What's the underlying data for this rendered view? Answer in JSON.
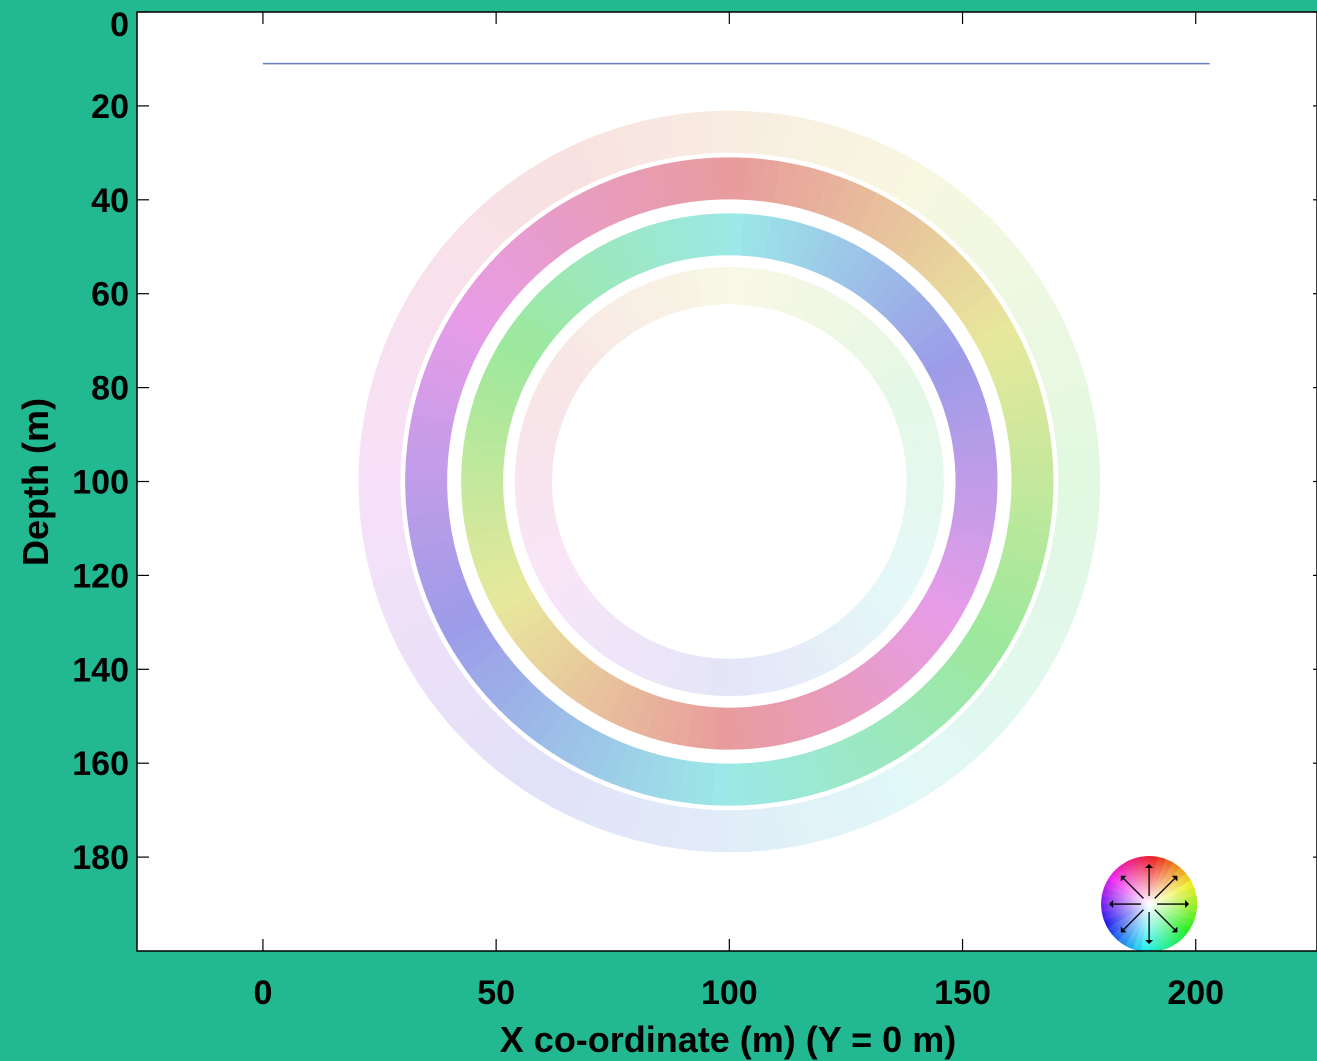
{
  "chart_data": {
    "type": "heatmap",
    "xlabel": "X co-ordinate (m)  (Y = 0 m)",
    "ylabel": "Depth (m)",
    "xlim": [
      -27,
      226
    ],
    "ylim": [
      0,
      200
    ],
    "y_inverted": true,
    "x_ticks": [
      0,
      50,
      100,
      150,
      200
    ],
    "x_tick_labels": [
      "0",
      "50",
      "100",
      "150",
      "200"
    ],
    "y_ticks": [
      0,
      20,
      40,
      60,
      80,
      100,
      120,
      140,
      160,
      180
    ],
    "y_tick_labels": [
      "0",
      "20",
      "40",
      "60",
      "80",
      "100",
      "120",
      "140",
      "160",
      "180"
    ],
    "grid": false,
    "colormap": "direction colour wheel (hue = polarization direction)",
    "surface_line": {
      "depth": 11,
      "x_start": 0,
      "x_end": 203,
      "color": "#6a7fc2"
    },
    "wavefronts": [
      {
        "name": "outer faint ring",
        "center": [
          100,
          100
        ],
        "radius": 75,
        "width": 9,
        "opacity": 0.25,
        "hue_offset": 30
      },
      {
        "name": "outer main ring",
        "center": [
          100,
          100
        ],
        "radius": 65,
        "width": 9,
        "opacity": 0.85,
        "hue_offset": 0
      },
      {
        "name": "inner main ring",
        "center": [
          100,
          100
        ],
        "radius": 53,
        "width": 9,
        "opacity": 0.85,
        "hue_offset": 180
      },
      {
        "name": "inner faint ring",
        "center": [
          100,
          100
        ],
        "radius": 42,
        "width": 8,
        "opacity": 0.22,
        "hue_offset": 60
      }
    ],
    "legend": {
      "type": "colour-wheel",
      "placement": "bottom-right",
      "center_x": 190,
      "center_depth": 190
    }
  }
}
